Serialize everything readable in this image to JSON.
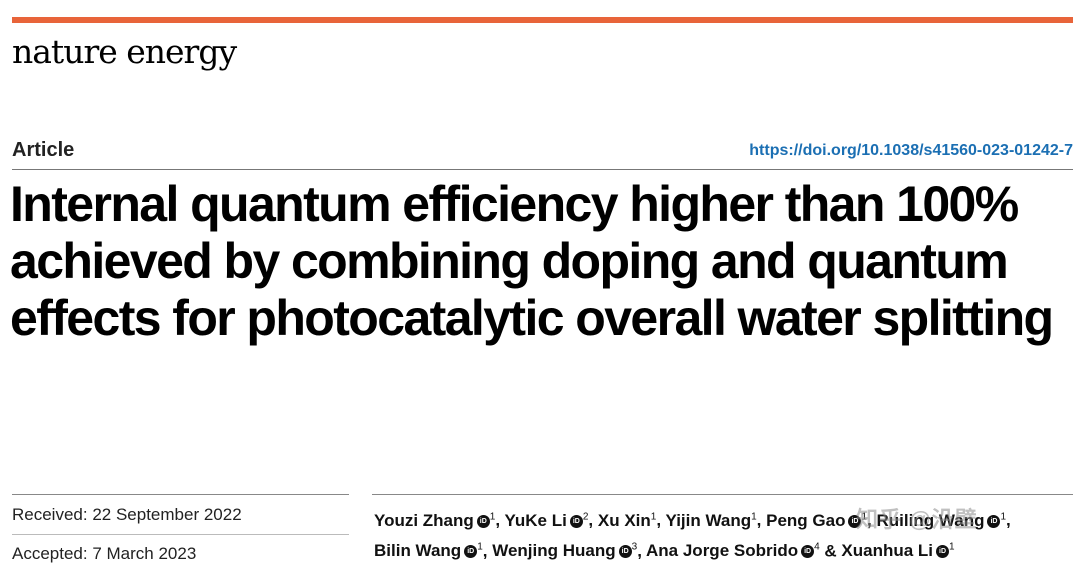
{
  "journal": "nature energy",
  "article_type": "Article",
  "doi": "https://doi.org/10.1038/s41560-023-01242-7",
  "title": "Internal quantum efficiency higher than 100% achieved by combining doping and quantum effects for photocatalytic overall water splitting",
  "received": "Received: 22 September 2022",
  "accepted": "Accepted: 7 March 2023",
  "authors": [
    {
      "name": "Youzi Zhang",
      "orcid": true,
      "aff": "1"
    },
    {
      "name": "YuKe Li",
      "orcid": true,
      "aff": "2"
    },
    {
      "name": "Xu Xin",
      "orcid": false,
      "aff": "1"
    },
    {
      "name": "Yijin Wang",
      "orcid": false,
      "aff": "1"
    },
    {
      "name": "Peng Gao",
      "orcid": true,
      "aff": "1"
    },
    {
      "name": "Ruiling Wang",
      "orcid": true,
      "aff": "1"
    },
    {
      "name": "Bilin Wang",
      "orcid": true,
      "aff": "1"
    },
    {
      "name": "Wenjing Huang",
      "orcid": true,
      "aff": "3"
    },
    {
      "name": "Ana Jorge Sobrido",
      "orcid": true,
      "aff": "4"
    },
    {
      "name": "Xuanhua Li",
      "orcid": true,
      "aff": "1"
    }
  ],
  "orcid_label": "iD",
  "watermark": "知乎 @沿壁"
}
